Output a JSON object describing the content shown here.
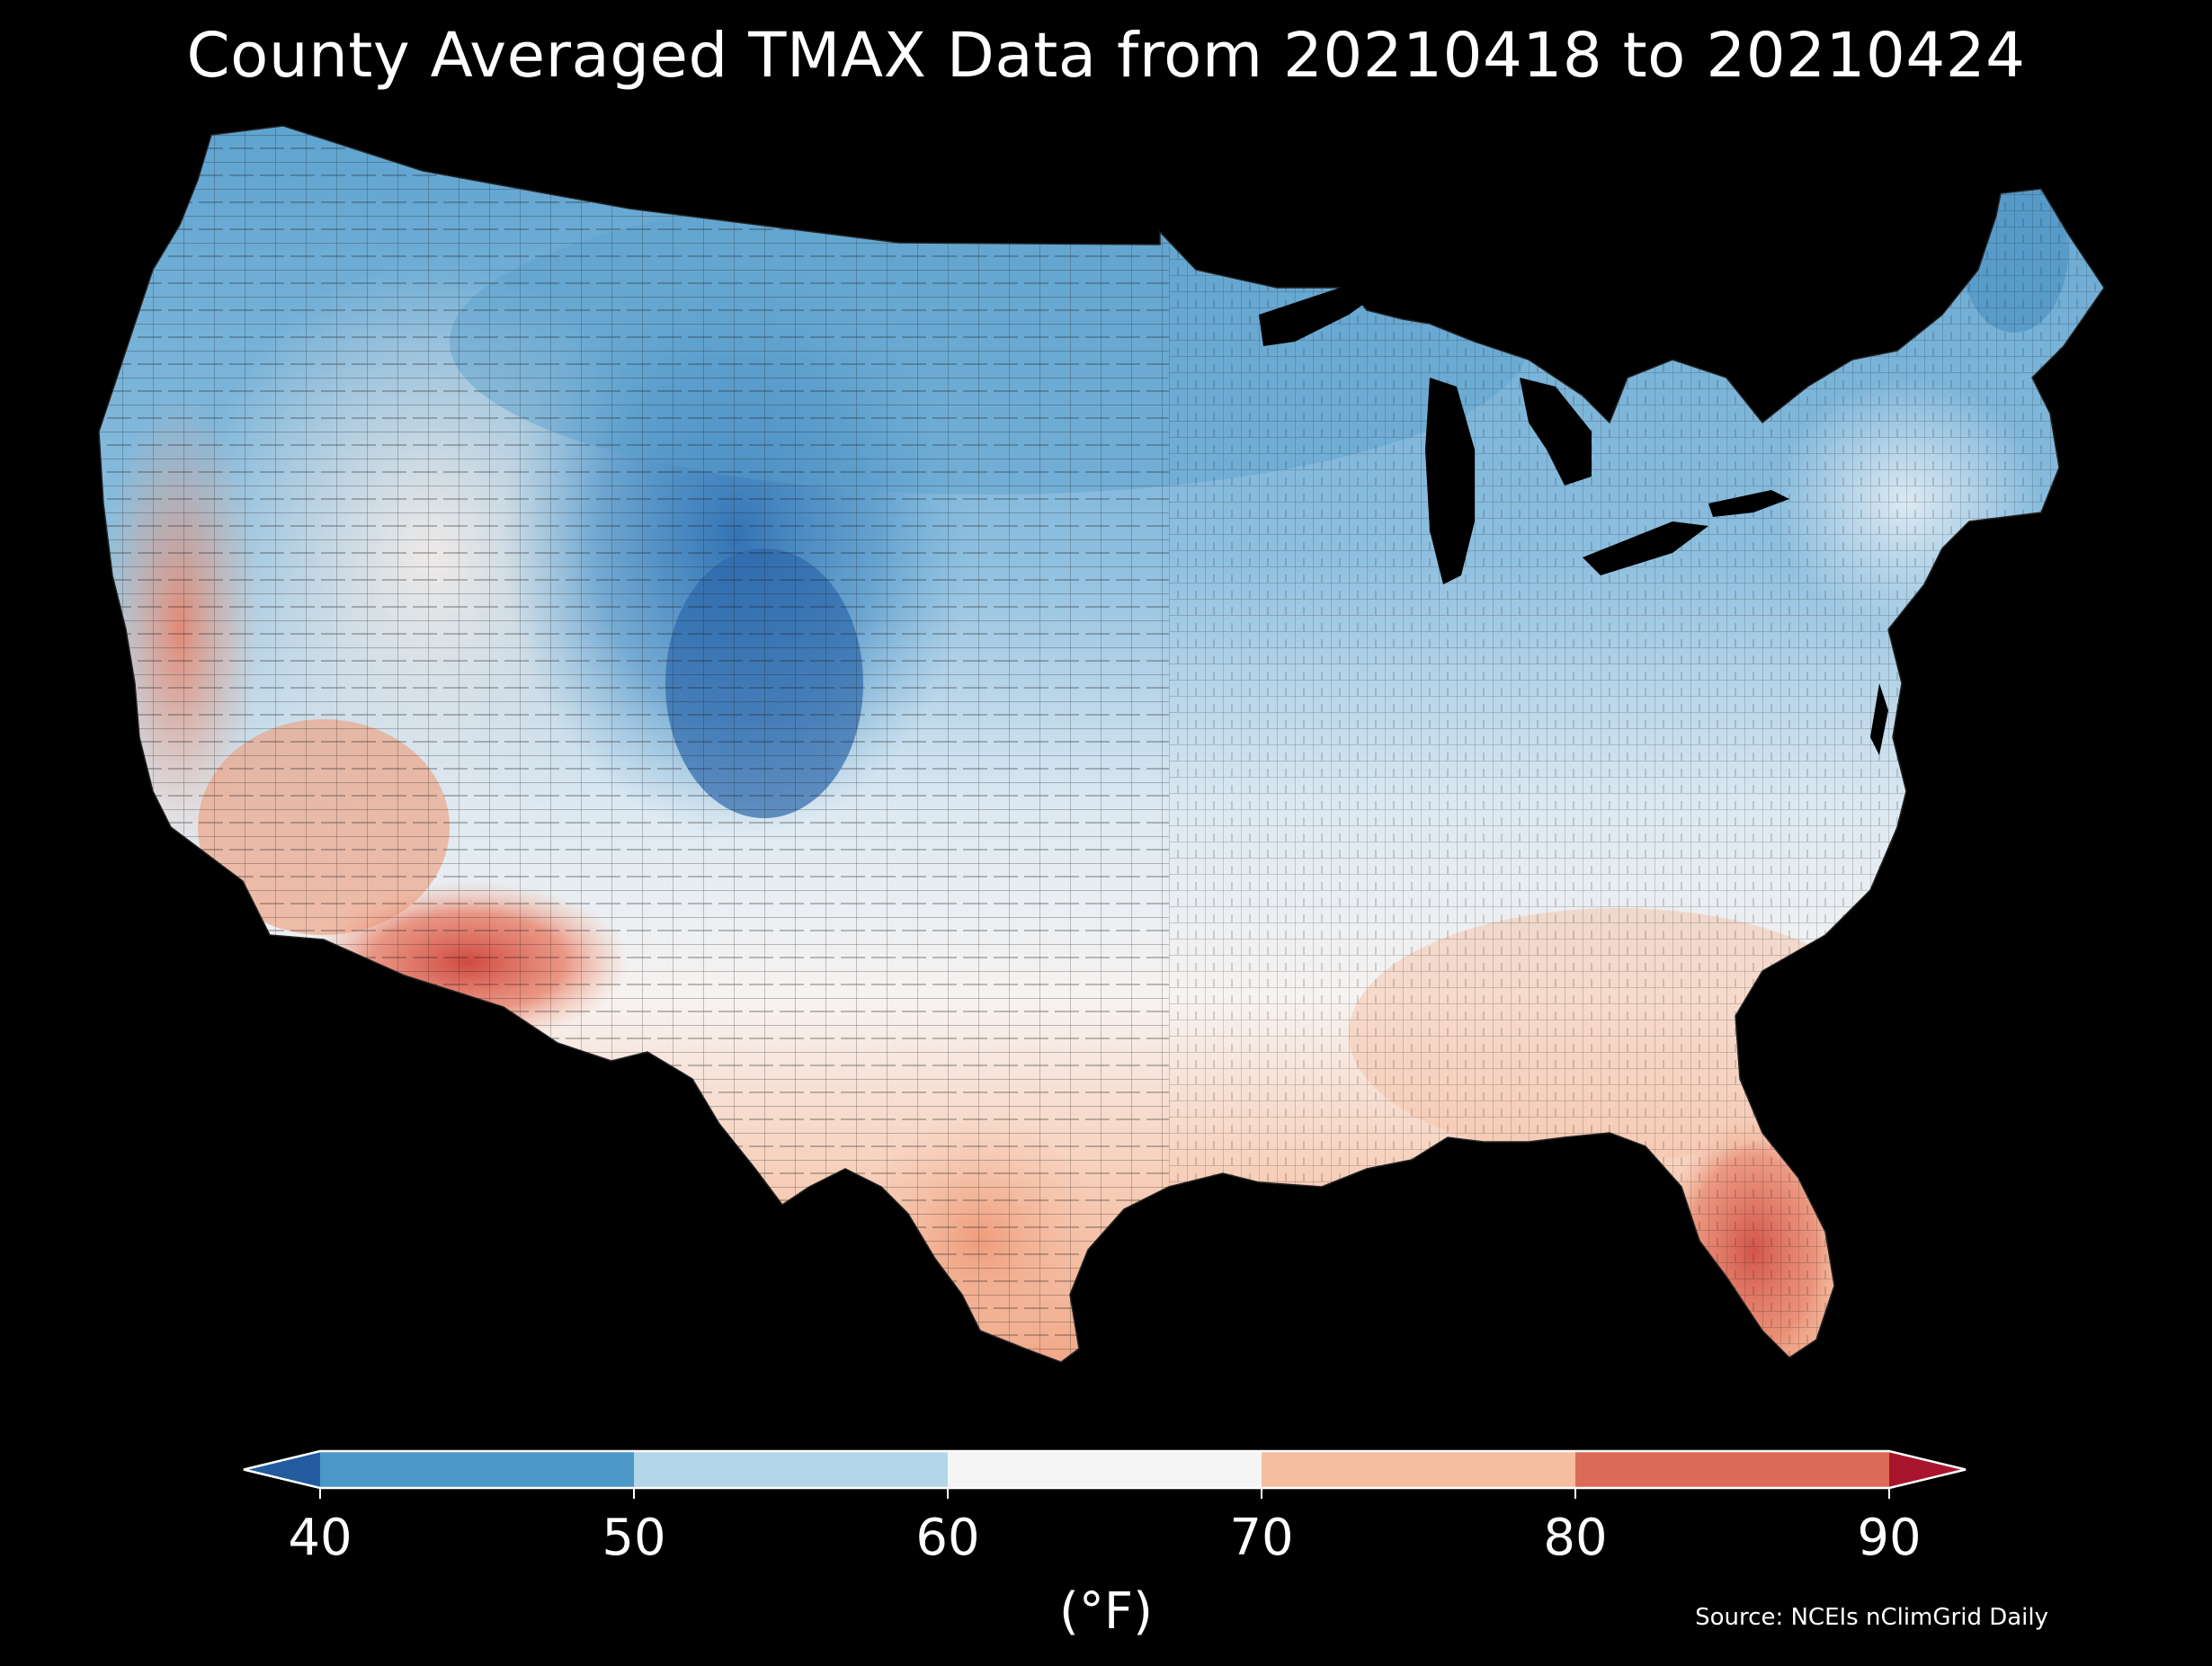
{
  "title": "County Averaged TMAX Data from 20210418 to 20210424",
  "colorbar": {
    "ticks": [
      "40",
      "50",
      "60",
      "70",
      "80",
      "90"
    ],
    "unit": "(°F)",
    "bins": [
      {
        "range": "<40",
        "color": "#225b9e"
      },
      {
        "range": "40-50",
        "color": "#4b98c7"
      },
      {
        "range": "50-60",
        "color": "#b3d6e8"
      },
      {
        "range": "60-70",
        "color": "#f5f5f5"
      },
      {
        "range": "70-80",
        "color": "#f6bea1"
      },
      {
        "range": "80-90",
        "color": "#dc6a58"
      },
      {
        "range": ">90",
        "color": "#a8152d"
      }
    ]
  },
  "source": "Source: NCEIs nClimGrid Daily",
  "map": {
    "background": "#000000",
    "region": "Contiguous United States, county level"
  }
}
